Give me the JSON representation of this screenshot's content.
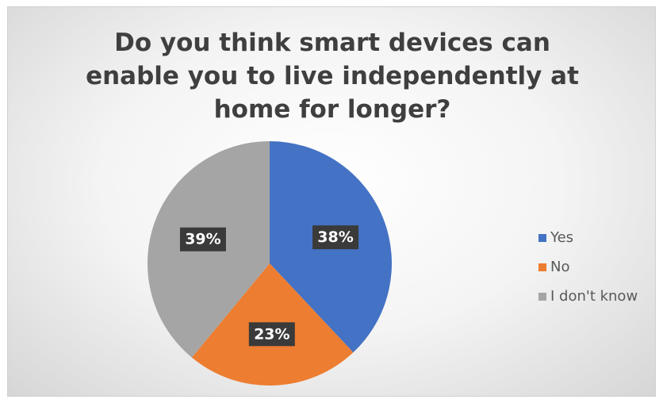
{
  "chart_data": {
    "type": "pie",
    "title_lines": [
      "Do you think smart devices can",
      "enable you to live independently at",
      "home for longer?"
    ],
    "categories": [
      "Yes",
      "No",
      "I don't know"
    ],
    "values": [
      38,
      23,
      39
    ],
    "data_labels": [
      "38%",
      "23%",
      "39%"
    ],
    "colors": [
      "#4472c4",
      "#ed7d31",
      "#a5a5a5"
    ],
    "legend_position": "right",
    "start_angle": "12 o'clock",
    "direction": "clockwise"
  }
}
